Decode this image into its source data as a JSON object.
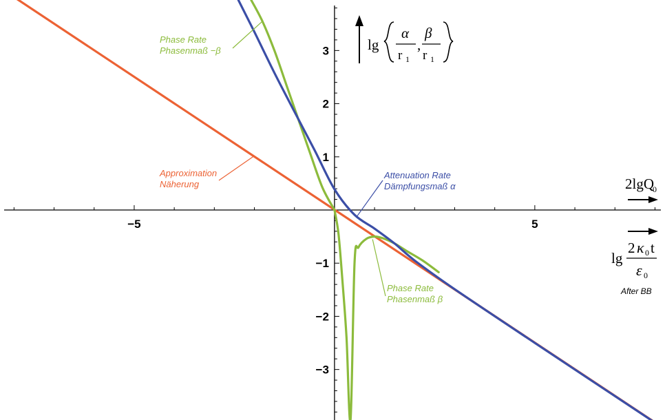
{
  "chart_data": {
    "type": "line",
    "xlim": [
      -8.35,
      8.25
    ],
    "ylim": [
      -3.95,
      3.95
    ],
    "x_ticks": [
      -5,
      5
    ],
    "y_ticks": [
      3,
      2,
      1,
      -1,
      -2,
      -3
    ],
    "x_tick_labels": [
      "−5",
      "5"
    ],
    "y_tick_labels": [
      "3",
      "2",
      "1",
      "−1",
      "−2",
      "−3"
    ],
    "grid": false,
    "colors": {
      "attenuation": "#3b4ea6",
      "phase": "#8cbb3c",
      "approximation": "#ec6234"
    },
    "series": [
      {
        "key": "approximation",
        "x": [
          -8.35,
          8.25
        ],
        "y": [
          4.18,
          -4.12
        ]
      },
      {
        "key": "attenuation",
        "x": [
          -2.4,
          -2.0,
          -1.5,
          -1.0,
          -0.5,
          0,
          0.5,
          1.0,
          1.5,
          2.0,
          3.0,
          5.0,
          8.0
        ],
        "y": [
          3.95,
          3.35,
          2.58,
          1.85,
          1.13,
          0.39,
          -0.09,
          -0.35,
          -0.63,
          -0.95,
          -1.49,
          -2.5,
          -4.0
        ]
      },
      {
        "key": "phase_negative",
        "x": [
          -2.08,
          -1.8,
          -1.5,
          -1.2,
          -0.9,
          -0.6,
          -0.3,
          0
        ],
        "y": [
          3.95,
          3.55,
          3.0,
          2.35,
          1.7,
          1.05,
          0.42,
          0
        ]
      },
      {
        "key": "phase_positive",
        "x": [
          0,
          0.1,
          0.2,
          0.3,
          0.4,
          0.5,
          0.6,
          0.8,
          1.0,
          1.2,
          1.5,
          1.8,
          2.2,
          2.6
        ],
        "y": [
          0,
          -0.45,
          -1.35,
          -2.4,
          -3.95,
          -1.0,
          -0.7,
          -0.54,
          -0.5,
          -0.53,
          -0.63,
          -0.77,
          -0.95,
          -1.17
        ]
      }
    ],
    "annotations": {
      "phase_neg": {
        "line1": "Phase Rate",
        "line2": "Phasenmaß −β"
      },
      "approximation": {
        "line1": "Approximation",
        "line2": "Näherung"
      },
      "attenuation": {
        "line1": "Attenuation Rate",
        "line2": "Dämpfungsmaß α"
      },
      "phase_pos": {
        "line1": "Phase Rate",
        "line2": "Phasenmaß β"
      }
    },
    "y_axis_label": {
      "lg": "lg",
      "alpha": "α",
      "beta": "β",
      "r": "r",
      "sub": "1",
      "comma": ","
    },
    "x_axis_label_top": {
      "text": "2lgQ",
      "sub": "0"
    },
    "x_axis_label_bottom": {
      "lg": "lg",
      "two": "2",
      "kappa": "κ",
      "sub0": "0",
      "t": "t",
      "eps": "ε"
    },
    "note": "After BB"
  }
}
